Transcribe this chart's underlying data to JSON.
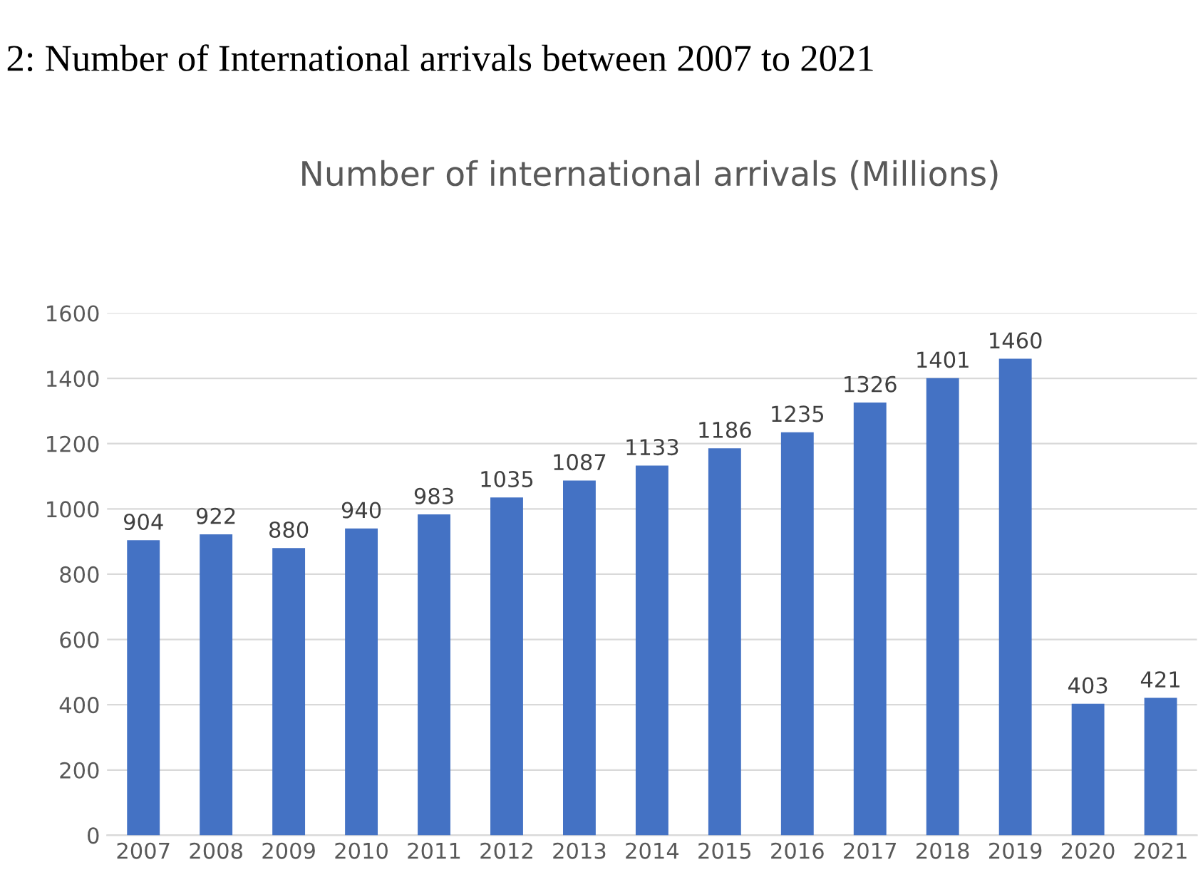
{
  "chart_data": {
    "type": "bar",
    "title": "Number of international arrivals (Millions)",
    "annotations": [
      "2: Number of International arrivals between 2007 to 2021"
    ],
    "categories": [
      "2007",
      "2008",
      "2009",
      "2010",
      "2011",
      "2012",
      "2013",
      "2014",
      "2015",
      "2016",
      "2017",
      "2018",
      "2019",
      "2020",
      "2021"
    ],
    "values": [
      904,
      922,
      880,
      940,
      983,
      1035,
      1087,
      1133,
      1186,
      1235,
      1326,
      1401,
      1460,
      403,
      421
    ],
    "color": "#4472c4",
    "data_labels": true,
    "ylim": [
      0,
      1600
    ],
    "yticks": [
      0,
      200,
      400,
      600,
      800,
      1000,
      1200,
      1400,
      1600
    ],
    "grid": "y"
  }
}
